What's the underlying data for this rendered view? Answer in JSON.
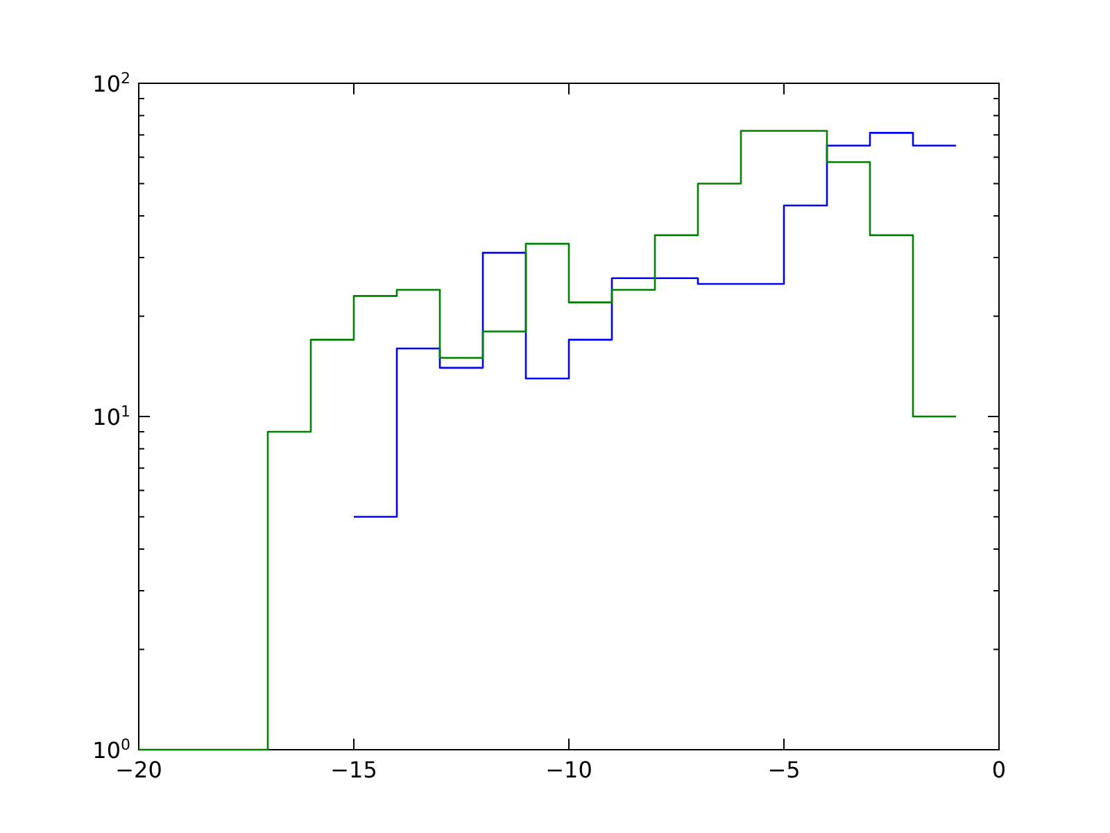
{
  "chart_data": {
    "type": "step",
    "x": [
      -20,
      -19,
      -18,
      -17,
      -16,
      -15,
      -14,
      -13,
      -12,
      -11,
      -10,
      -9,
      -8,
      -7,
      -6,
      -5,
      -4,
      -3,
      -2,
      -1
    ],
    "series": [
      {
        "color": "#0000ff",
        "values": [
          null,
          null,
          null,
          null,
          null,
          5,
          16,
          14,
          31,
          13,
          17,
          26,
          26,
          25,
          25,
          43,
          65,
          71,
          65,
          65
        ]
      },
      {
        "color": "#008000",
        "values": [
          1,
          1,
          1,
          9,
          17,
          23,
          24,
          15,
          18,
          33,
          22,
          24,
          35,
          50,
          72,
          72,
          58,
          35,
          10,
          10
        ]
      }
    ],
    "xlim": [
      -20,
      0
    ],
    "xticks": [
      -20,
      -15,
      -10,
      -5,
      0
    ],
    "ylim": [
      1,
      100
    ],
    "log": "y",
    "yticks": [
      {
        "value": 1,
        "label": "10$^{0}$"
      },
      {
        "value": 2,
        "label": null
      },
      {
        "value": 3,
        "label": null
      },
      {
        "value": 4,
        "label": null
      },
      {
        "value": 5,
        "label": null
      },
      {
        "value": 6,
        "label": null
      },
      {
        "value": 7,
        "label": null
      },
      {
        "value": 8,
        "label": null
      },
      {
        "value": 9,
        "label": null
      },
      {
        "value": 10,
        "label": "10$^{1}$"
      },
      {
        "value": 20,
        "label": null
      },
      {
        "value": 30,
        "label": null
      },
      {
        "value": 40,
        "label": null
      },
      {
        "value": 50,
        "label": null
      },
      {
        "value": 60,
        "label": null
      },
      {
        "value": 70,
        "label": null
      },
      {
        "value": 80,
        "label": null
      },
      {
        "value": 90,
        "label": null
      },
      {
        "value": 100,
        "label": "10$^{2}$"
      }
    ]
  }
}
